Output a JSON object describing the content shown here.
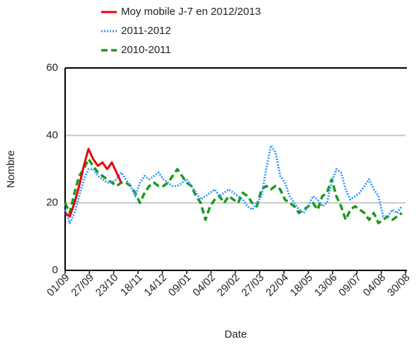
{
  "chart_data": {
    "type": "line",
    "xlabel": "Date",
    "ylabel": "Nombre",
    "x": [
      0,
      5,
      10,
      15,
      20,
      25,
      30,
      35,
      40,
      45,
      50,
      55,
      60,
      65,
      70,
      75,
      80,
      85,
      90,
      95,
      100,
      105,
      110,
      115,
      120,
      125,
      130,
      135,
      140,
      145,
      150,
      155,
      160,
      165,
      170,
      175,
      180,
      185,
      190,
      195,
      200,
      205,
      210,
      215,
      220,
      225,
      230,
      235,
      240,
      245,
      250,
      255,
      260,
      265,
      270,
      275,
      280,
      285,
      290,
      295,
      300,
      305,
      310,
      315,
      320,
      325,
      330,
      335,
      340,
      345,
      350,
      355,
      360
    ],
    "xlim": [
      0,
      364
    ],
    "xticks": [
      {
        "value": 0,
        "label": "01/09"
      },
      {
        "value": 26,
        "label": "27/09"
      },
      {
        "value": 52,
        "label": "23/10"
      },
      {
        "value": 78,
        "label": "18/11"
      },
      {
        "value": 104,
        "label": "14/12"
      },
      {
        "value": 130,
        "label": "09/01"
      },
      {
        "value": 156,
        "label": "04/02"
      },
      {
        "value": 182,
        "label": "29/02"
      },
      {
        "value": 208,
        "label": "27/03"
      },
      {
        "value": 234,
        "label": "22/04"
      },
      {
        "value": 260,
        "label": "18/05"
      },
      {
        "value": 286,
        "label": "13/06"
      },
      {
        "value": 312,
        "label": "09/07"
      },
      {
        "value": 338,
        "label": "04/08"
      },
      {
        "value": 364,
        "label": "30/08"
      }
    ],
    "ylim": [
      0,
      60
    ],
    "yticks": [
      0,
      20,
      40,
      60
    ],
    "grid": true,
    "series": [
      {
        "name": "Moy mobile J-7 en 2012/2013",
        "color": "#e8000b",
        "style": "solid",
        "values": [
          17,
          16,
          20,
          25,
          31,
          36,
          33,
          31,
          32,
          30,
          32,
          29,
          26,
          null,
          null,
          null,
          null,
          null,
          null,
          null,
          null,
          null,
          null,
          null,
          null,
          null,
          null,
          null,
          null,
          null,
          null,
          null,
          null,
          null,
          null,
          null,
          null,
          null,
          null,
          null,
          null,
          null,
          null,
          null,
          null,
          null,
          null,
          null,
          null,
          null,
          null,
          null,
          null,
          null,
          null,
          null,
          null,
          null,
          null,
          null,
          null,
          null,
          null,
          null,
          null,
          null,
          null,
          null,
          null,
          null,
          null,
          null,
          null
        ]
      },
      {
        "name": "2011-2012",
        "color": "#3399ff",
        "style": "dotted",
        "values": [
          18,
          14,
          17,
          22,
          27,
          30,
          30,
          28,
          27,
          26,
          26,
          27,
          29,
          27,
          25,
          22,
          26,
          28,
          27,
          28,
          29,
          27,
          26,
          25,
          25,
          26,
          27,
          25,
          23,
          21,
          22,
          23,
          24,
          22,
          23,
          24,
          23,
          22,
          21,
          19,
          18,
          20,
          22,
          30,
          37,
          35,
          28,
          26,
          22,
          20,
          18,
          17,
          19,
          22,
          21,
          19,
          20,
          26,
          30,
          29,
          24,
          21,
          22,
          23,
          25,
          27,
          24,
          22,
          16,
          16,
          18,
          17,
          19
        ]
      },
      {
        "name": "2010-2011",
        "color": "#1a9a1a",
        "style": "dashed",
        "values": [
          20,
          17,
          23,
          28,
          30,
          33,
          31,
          29,
          28,
          27,
          26,
          25,
          26,
          26,
          25,
          23,
          20,
          23,
          25,
          26,
          25,
          25,
          26,
          28,
          30,
          28,
          26,
          25,
          22,
          20,
          15,
          19,
          21,
          22,
          20,
          22,
          21,
          20,
          23,
          22,
          20,
          19,
          24,
          25,
          24,
          25,
          24,
          21,
          20,
          19,
          17,
          18,
          19,
          20,
          18,
          22,
          23,
          27,
          22,
          19,
          15,
          18,
          19,
          18,
          17,
          15,
          17,
          14,
          15,
          16,
          15,
          16,
          17
        ]
      }
    ]
  }
}
